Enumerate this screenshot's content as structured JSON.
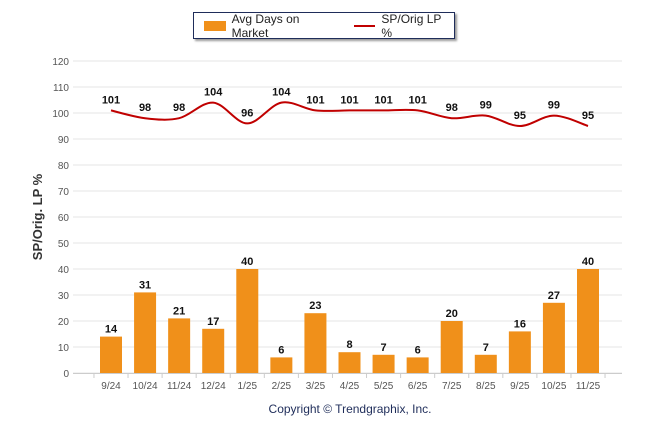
{
  "chart_data": {
    "type": "bar+line",
    "categories": [
      "9/24",
      "10/24",
      "11/24",
      "12/24",
      "1/25",
      "2/25",
      "3/25",
      "4/25",
      "5/25",
      "6/25",
      "7/25",
      "8/25",
      "9/25",
      "10/25",
      "11/25"
    ],
    "series": [
      {
        "name": "Avg Days on Market",
        "type": "bar",
        "color": "#f0901a",
        "values": [
          14,
          31,
          21,
          17,
          40,
          6,
          23,
          8,
          7,
          6,
          20,
          7,
          16,
          27,
          40
        ]
      },
      {
        "name": "SP/Orig LP %",
        "type": "line",
        "color": "#c00000",
        "values": [
          101,
          98,
          98,
          104,
          96,
          104,
          101,
          101,
          101,
          101,
          98,
          99,
          95,
          99,
          95
        ]
      }
    ],
    "ylabel": "SP/Orig. LP %",
    "xlabel": "",
    "ylim": [
      0,
      120
    ],
    "yticks": [
      0,
      10,
      20,
      30,
      40,
      50,
      60,
      70,
      80,
      90,
      100,
      110,
      120
    ],
    "grid": true,
    "legend_position": "top-center"
  },
  "footer": {
    "copyright": "Copyright © Trendgraphix, Inc."
  }
}
